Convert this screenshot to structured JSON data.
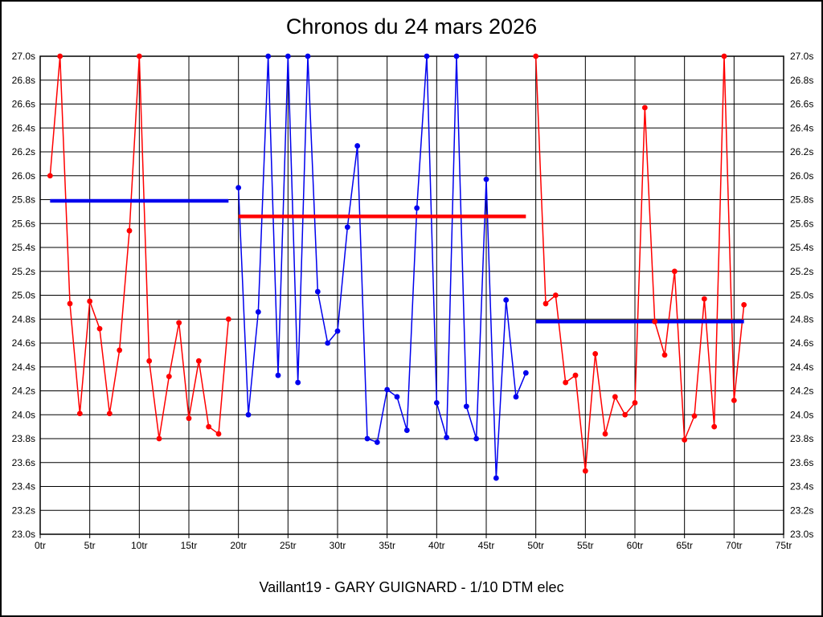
{
  "title": "Chronos du 24 mars 2026",
  "footer": "Vaillant19 - GARY GUIGNARD - 1/10 DTM elec",
  "chart_data": {
    "type": "line",
    "title": "Chronos du 24 mars 2026",
    "footer": "Vaillant19 - GARY GUIGNARD - 1/10 DTM elec",
    "grid": true,
    "x_axis": {
      "unit": "tr",
      "min": 0,
      "max": 75,
      "tick_step": 5,
      "tick_labels": [
        "0tr",
        "5tr",
        "10tr",
        "15tr",
        "20tr",
        "25tr",
        "30tr",
        "35tr",
        "40tr",
        "45tr",
        "50tr",
        "55tr",
        "60tr",
        "65tr",
        "70tr",
        "75tr"
      ]
    },
    "y_axis": {
      "unit": "s",
      "min": 23.0,
      "max": 27.0,
      "tick_step": 0.2,
      "tick_labels": [
        "27.0s",
        "26.8s",
        "26.6s",
        "26.4s",
        "26.2s",
        "26.0s",
        "25.8s",
        "25.6s",
        "25.4s",
        "25.2s",
        "25.0s",
        "24.8s",
        "24.6s",
        "24.4s",
        "24.2s",
        "24.0s",
        "23.8s",
        "23.6s",
        "23.4s",
        "23.2s",
        "23.0s"
      ],
      "labels_on_both_sides": true
    },
    "series": [
      {
        "name": "stint-1-red",
        "color": "#ff0000",
        "start_lap": 1,
        "laps": [
          26.0,
          27.0,
          24.93,
          24.01,
          24.95,
          24.72,
          24.01,
          24.54,
          25.54,
          27.0,
          24.45,
          23.8,
          24.32,
          24.77,
          23.97,
          24.45,
          23.9,
          23.84,
          24.8
        ]
      },
      {
        "name": "stint-2-blue",
        "color": "#0000ee",
        "start_lap": 20,
        "laps": [
          25.9,
          24.0,
          24.86,
          27.0,
          24.33,
          27.0,
          24.27,
          27.0,
          25.03,
          24.6,
          24.7,
          25.57,
          26.25,
          23.8,
          23.77,
          24.21,
          24.15,
          23.87,
          25.73,
          27.0,
          24.1,
          23.81,
          27.0,
          24.07,
          23.8,
          25.97,
          23.47,
          24.96,
          24.15,
          24.35
        ]
      },
      {
        "name": "stint-3-red",
        "color": "#ff0000",
        "start_lap": 50,
        "laps": [
          27.0,
          24.93,
          25.0,
          24.27,
          24.33,
          23.53,
          24.51,
          23.84,
          24.15,
          24.0,
          24.1,
          26.57,
          24.78,
          24.5,
          25.2,
          23.79,
          23.99,
          24.97,
          23.9,
          27.0,
          24.12,
          24.92
        ]
      }
    ],
    "average_lines": [
      {
        "name": "avg-stint-1",
        "color": "#0000ee",
        "value": 25.79,
        "from_lap": 1,
        "to_lap": 19
      },
      {
        "name": "avg-stint-2",
        "color": "#ff0000",
        "value": 25.66,
        "from_lap": 20,
        "to_lap": 49
      },
      {
        "name": "avg-stint-3",
        "color": "#0000ee",
        "value": 24.78,
        "from_lap": 50,
        "to_lap": 71
      }
    ],
    "colors": {
      "red_series": "#ff0000",
      "blue_series": "#0000ee",
      "grid": "#000000",
      "background": "#ffffff"
    }
  }
}
